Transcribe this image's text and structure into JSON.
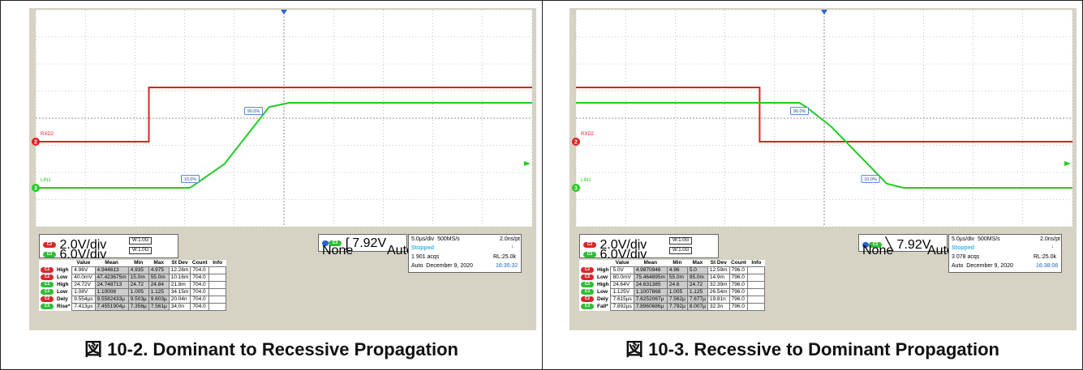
{
  "chart_data": [
    {
      "type": "line",
      "series": [
        {
          "name": "RXD2",
          "color": "#e02020",
          "x": [
            -30,
            -18.6,
            -18.6,
            20
          ],
          "y": [
            0,
            0,
            1,
            1
          ]
        },
        {
          "name": "LIN1",
          "color": "#22cc22",
          "x": [
            -30,
            -14.5,
            -14.2,
            -11,
            -6.5,
            -4.5,
            20
          ],
          "y": [
            0,
            0,
            0.02,
            0.28,
            0.95,
            1,
            1
          ]
        }
      ],
      "annotations": [
        "10.0%",
        "90.0%"
      ],
      "channels": [
        {
          "id": "C2",
          "scale": "2.0V/div",
          "bw": "1.0G"
        },
        {
          "id": "C3",
          "scale": "6.0V/div",
          "bw": "1.0G"
        }
      ],
      "bw_label": "W",
      "trigger": {
        "source": "C3",
        "level": "7.92V",
        "coupling": "None",
        "mode": "Auto"
      },
      "horizontal": {
        "time_div": "5.0µs/div",
        "sample_rate": "500MS/s",
        "pt": "2.0ns/pt",
        "status": "Stopped",
        "acqs": "1 901 acqs",
        "rl": "RL:25.0k",
        "mode": "Auto",
        "date": "December 9, 2020",
        "time": "16:35:32"
      },
      "table": {
        "headers": [
          "Value",
          "Mean",
          "Min",
          "Max",
          "St Dev",
          "Count",
          "Info"
        ],
        "rows": [
          {
            "ch": "C2",
            "color": "red",
            "label": "High",
            "cells": [
              "4.96V",
              "4.944613",
              "4.935",
              "4.975",
              "12.26m",
              "704.0",
              ""
            ]
          },
          {
            "ch": "C2",
            "color": "red",
            "label": "Low",
            "cells": [
              "40.0mV",
              "47.423675m",
              "15.0m",
              "55.0m",
              "10.16m",
              "704.0",
              ""
            ]
          },
          {
            "ch": "C3",
            "color": "grn",
            "label": "High",
            "cells": [
              "24.72V",
              "24.748713",
              "24.72",
              "24.84",
              "21.8m",
              "704.0",
              ""
            ]
          },
          {
            "ch": "C3",
            "color": "grn",
            "label": "Low",
            "cells": [
              "1.08V",
              "1.10008",
              "1.005",
              "1.125",
              "34.15m",
              "704.0",
              ""
            ]
          },
          {
            "ch": "C2",
            "color": "red",
            "label": "Dely",
            "cells": [
              "9.554µs",
              "9.5582433µ",
              "9.503µ",
              "9.603µ",
              "20.04n",
              "704.0",
              ""
            ]
          },
          {
            "ch": "C3",
            "color": "grn",
            "label": "Rise*",
            "cells": [
              "7.413µs",
              "7.4551904µ",
              "7.356µ",
              "7.561µ",
              "34.0n",
              "704.0",
              ""
            ]
          }
        ]
      },
      "caption_prefix": "図",
      "caption": "10-2. Dominant to Recessive Propagation"
    },
    {
      "type": "line",
      "series": [
        {
          "name": "RXD2",
          "color": "#e02020",
          "x": [
            -30,
            -11.5,
            -11.5,
            20
          ],
          "y": [
            1,
            1,
            0,
            0
          ]
        },
        {
          "name": "LIN1",
          "color": "#22cc22",
          "x": [
            -30,
            -7.5,
            -6.8,
            -4.3,
            1.3,
            3,
            20
          ],
          "y": [
            1,
            1,
            0.95,
            0.72,
            0.05,
            0,
            0
          ]
        }
      ],
      "annotations": [
        "90.0%",
        "10.0%"
      ],
      "channels": [
        {
          "id": "C2",
          "scale": "2.0V/div",
          "bw": "1.0G"
        },
        {
          "id": "C3",
          "scale": "6.0V/div",
          "bw": "1.0G"
        }
      ],
      "bw_label": "W",
      "trigger": {
        "source": "C3",
        "level": "7.92V",
        "coupling": "None",
        "mode": "Auto"
      },
      "horizontal": {
        "time_div": "5.0µs/div",
        "sample_rate": "500MS/s",
        "pt": "2.0ns/pt",
        "status": "Stopped",
        "acqs": "3 078 acqs",
        "rl": "RL:25.0k",
        "mode": "Auto",
        "date": "December 9, 2020",
        "time": "16:38:06"
      },
      "table": {
        "headers": [
          "Value",
          "Mean",
          "Min",
          "Max",
          "St Dev",
          "Count",
          "Info"
        ],
        "rows": [
          {
            "ch": "C2",
            "color": "red",
            "label": "High",
            "cells": [
              "5.0V",
              "4.9870946",
              "4.96",
              "5.0",
              "12.59m",
              "796.0",
              ""
            ]
          },
          {
            "ch": "C2",
            "color": "red",
            "label": "Low",
            "cells": [
              "80.0mV",
              "75.464895m",
              "55.0m",
              "95.0m",
              "14.9m",
              "796.0",
              ""
            ]
          },
          {
            "ch": "C3",
            "color": "grn",
            "label": "High",
            "cells": [
              "24.64V",
              "24.631385",
              "24.6",
              "24.72",
              "32.39m",
              "796.0",
              ""
            ]
          },
          {
            "ch": "C3",
            "color": "grn",
            "label": "Low",
            "cells": [
              "1.125V",
              "1.1007868",
              "1.005",
              "1.125",
              "26.54m",
              "796.0",
              ""
            ]
          },
          {
            "ch": "C2",
            "color": "red",
            "label": "Dely",
            "cells": [
              "7.615µs",
              "7.6252067µ",
              "7.562µ",
              "7.677µ",
              "19.81n",
              "796.0",
              ""
            ]
          },
          {
            "ch": "C3",
            "color": "grn",
            "label": "Fall*",
            "cells": [
              "7.892µs",
              "7.8960686µ",
              "7.792µ",
              "8.007µ",
              "32.3n",
              "796.0",
              ""
            ]
          }
        ]
      },
      "caption_prefix": "図",
      "caption": "10-3. Recessive to Dominant Propagation"
    }
  ],
  "style": {
    "grid_bg": "#ffffff",
    "grid_line": "#999999",
    "bezel": "#d6d3c4",
    "red": "#e02020",
    "green": "#22cc22",
    "marker_blue": "#2a62d8"
  }
}
